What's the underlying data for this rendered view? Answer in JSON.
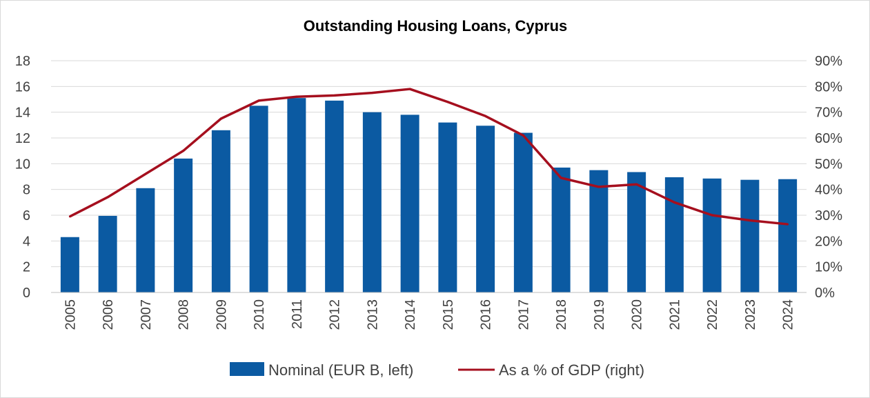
{
  "chart_data": {
    "type": "bar",
    "title": "Outstanding Housing Loans, Cyprus",
    "categories": [
      "2005",
      "2006",
      "2007",
      "2008",
      "2009",
      "2010",
      "2011",
      "2012",
      "2013",
      "2014",
      "2015",
      "2016",
      "2017",
      "2018",
      "2019",
      "2020",
      "2021",
      "2022",
      "2023",
      "2024"
    ],
    "series": [
      {
        "name": "Nominal (EUR B, left)",
        "type": "bar",
        "axis": "left",
        "color": "#0b5aa2",
        "values": [
          4.3,
          5.95,
          8.1,
          10.4,
          12.6,
          14.5,
          15.1,
          14.9,
          14.0,
          13.8,
          13.2,
          12.95,
          12.4,
          9.7,
          9.5,
          9.35,
          8.95,
          8.85,
          8.75,
          8.8
        ]
      },
      {
        "name": "As a % of GDP (right)",
        "type": "line",
        "axis": "right",
        "color": "#a50f1e",
        "values": [
          29.5,
          37,
          46,
          55,
          67.5,
          74.5,
          76,
          76.5,
          77.5,
          79,
          74,
          68.5,
          61,
          44.5,
          41,
          42,
          35,
          30,
          28,
          26.5
        ]
      }
    ],
    "y_left": {
      "min": 0,
      "max": 18,
      "step": 2,
      "ticks": [
        "0",
        "2",
        "4",
        "6",
        "8",
        "10",
        "12",
        "14",
        "16",
        "18"
      ]
    },
    "y_right": {
      "min": 0,
      "max": 90,
      "step": 10,
      "ticks": [
        "0%",
        "10%",
        "20%",
        "30%",
        "40%",
        "50%",
        "60%",
        "70%",
        "80%",
        "90%"
      ]
    },
    "grid": true,
    "legend_position": "bottom"
  }
}
